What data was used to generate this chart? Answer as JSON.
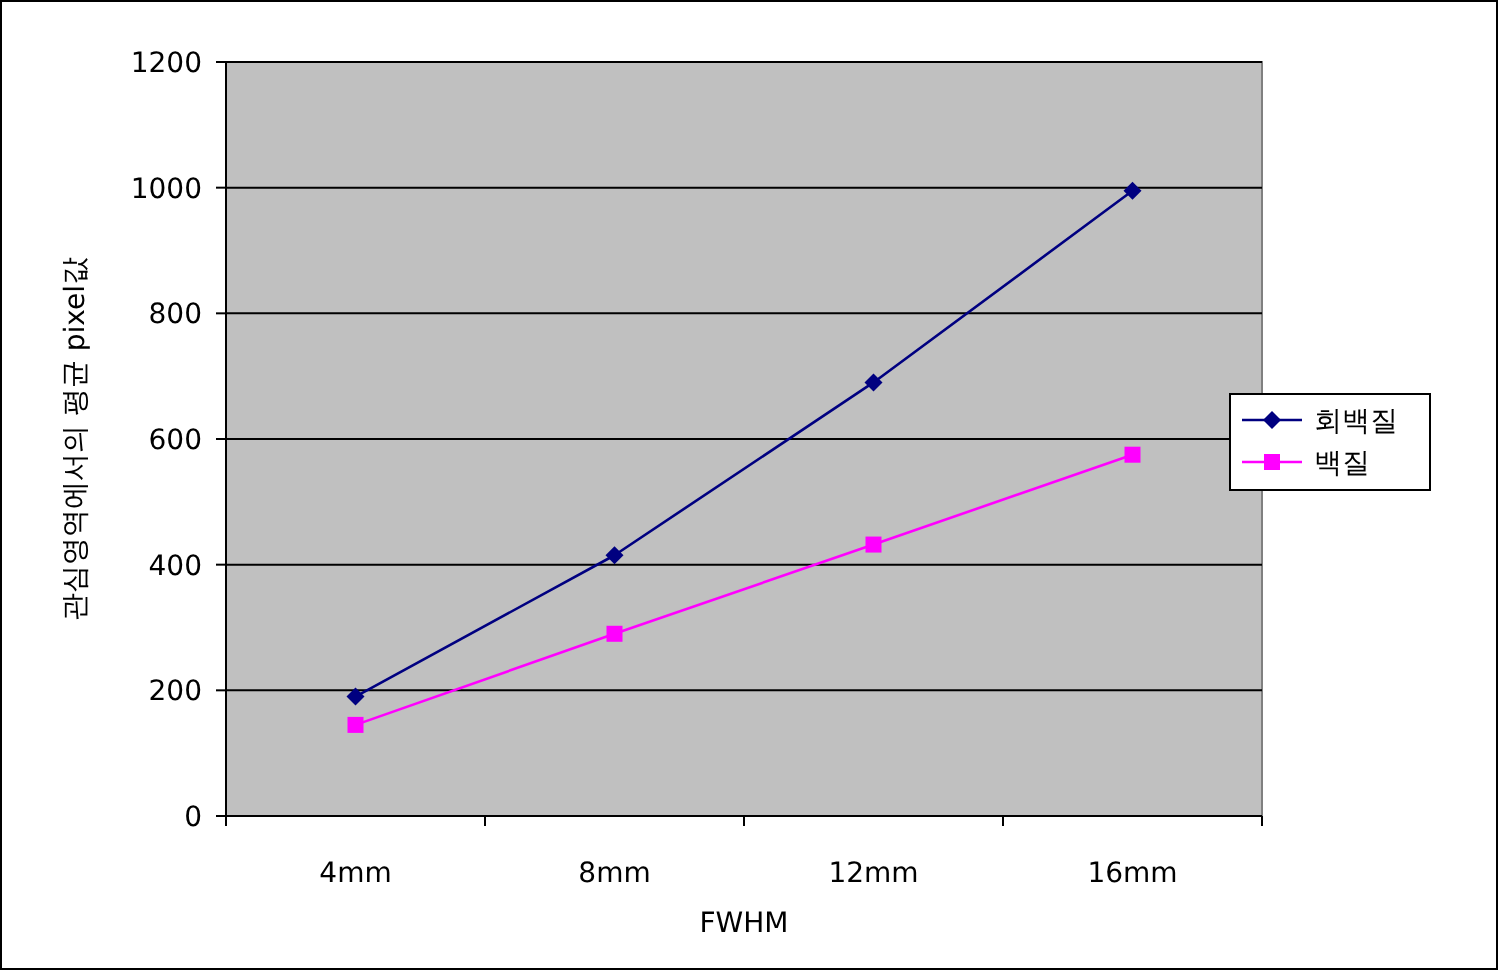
{
  "chart_data": {
    "type": "line",
    "xlabel": "FWHM",
    "ylabel": "관심영역에서의 평균 pixel값",
    "categories": [
      "4mm",
      "8mm",
      "12mm",
      "16mm"
    ],
    "series": [
      {
        "name": "회백질",
        "color": "#000080",
        "marker": "diamond",
        "values": [
          190,
          415,
          690,
          995
        ]
      },
      {
        "name": "백질",
        "color": "#ff00ff",
        "marker": "square",
        "values": [
          145,
          290,
          432,
          575
        ]
      }
    ],
    "ylim": [
      0,
      1200
    ],
    "yticks": [
      0,
      200,
      400,
      600,
      800,
      1000,
      1200
    ],
    "grid": "y",
    "legend": "right"
  }
}
